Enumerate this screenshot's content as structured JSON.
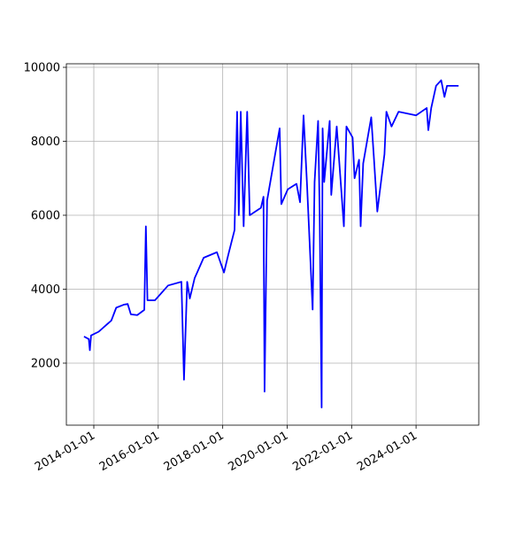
{
  "chart_data": {
    "type": "line",
    "x": [
      "2013-09-12",
      "2013-11-05",
      "2013-11-17",
      "2013-12-01",
      "2014-02-25",
      "2014-05-30",
      "2014-07-18",
      "2014-09-12",
      "2014-12-05",
      "2015-01-20",
      "2015-02-25",
      "2015-05-08",
      "2015-07-27",
      "2015-08-14",
      "2015-09-01",
      "2015-11-25",
      "2016-04-22",
      "2016-09-20",
      "2016-10-19",
      "2016-11-24",
      "2016-12-24",
      "2017-02-17",
      "2017-05-30",
      "2017-10-27",
      "2018-01-15",
      "2018-03-07",
      "2018-05-15",
      "2018-06-13",
      "2018-07-02",
      "2018-07-24",
      "2018-08-26",
      "2018-10-05",
      "2018-11-03",
      "2019-03-10",
      "2019-04-08",
      "2019-04-20",
      "2019-05-19",
      "2019-10-08",
      "2019-10-27",
      "2020-01-08",
      "2020-04-16",
      "2020-05-26",
      "2020-07-05",
      "2020-08-14",
      "2020-10-16",
      "2020-11-07",
      "2020-12-17",
      "2021-01-04",
      "2021-01-26",
      "2021-02-06",
      "2021-02-24",
      "2021-04-27",
      "2021-05-15",
      "2021-07-16",
      "2021-10-05",
      "2021-11-03",
      "2022-01-12",
      "2022-02-03",
      "2022-03-26",
      "2022-04-13",
      "2022-05-12",
      "2022-08-11",
      "2022-09-09",
      "2022-10-19",
      "2023-01-08",
      "2023-01-30",
      "2023-03-29",
      "2023-06-17",
      "2024-01-01",
      "2024-05-01",
      "2024-05-19",
      "2024-06-21",
      "2024-08-15",
      "2024-10-12",
      "2024-11-18",
      "2024-12-17",
      "2025-04-27"
    ],
    "values": [
      2720,
      2650,
      2350,
      2750,
      2850,
      3050,
      3150,
      3500,
      3580,
      3600,
      3320,
      3300,
      3440,
      5700,
      3700,
      3700,
      4100,
      4200,
      1550,
      4200,
      3750,
      4300,
      4850,
      5000,
      4450,
      4950,
      5600,
      8800,
      6000,
      8800,
      5700,
      8800,
      6000,
      6200,
      6500,
      1230,
      6400,
      8350,
      6300,
      6700,
      6850,
      6350,
      8700,
      6800,
      3450,
      6900,
      8550,
      6000,
      800,
      8350,
      6900,
      8550,
      6550,
      8400,
      5700,
      8400,
      8100,
      7000,
      7500,
      5700,
      7400,
      8650,
      7600,
      6100,
      7650,
      8800,
      8400,
      8800,
      8700,
      8900,
      8300,
      8900,
      9500,
      9650,
      9200,
      9500,
      9500
    ],
    "color": "#0000ff",
    "xlim": [
      "2013-02-24",
      "2025-12-12"
    ],
    "xticks": [
      "2014-01-01",
      "2016-01-01",
      "2018-01-01",
      "2020-01-01",
      "2022-01-01",
      "2024-01-01"
    ],
    "ylim": [
      323,
      10096
    ],
    "yticks": [
      2000,
      4000,
      6000,
      8000,
      10000
    ],
    "grid": true
  }
}
